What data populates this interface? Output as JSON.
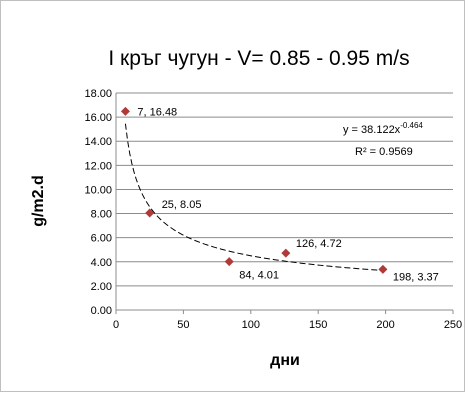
{
  "chart_data": {
    "type": "scatter",
    "title": "І кръг чугун - V= 0.85 - 0.95 m/s",
    "xlabel": "дни",
    "ylabel": "g/m2.d",
    "xlim": [
      0,
      250
    ],
    "ylim": [
      0,
      18
    ],
    "x_ticks": [
      "0",
      "50",
      "100",
      "150",
      "200",
      "250"
    ],
    "y_ticks": [
      "0.00",
      "2.00",
      "4.00",
      "6.00",
      "8.00",
      "10.00",
      "12.00",
      "14.00",
      "16.00",
      "18.00"
    ],
    "grid": "horizontal",
    "legend": "none",
    "series": [
      {
        "marker": "diamond",
        "color": "#b03a3a",
        "points": [
          {
            "x": 7,
            "y": 16.48,
            "label": "7, 16.48"
          },
          {
            "x": 25,
            "y": 8.05,
            "label": "25, 8.05"
          },
          {
            "x": 84,
            "y": 4.01,
            "label": "84, 4.01"
          },
          {
            "x": 126,
            "y": 4.72,
            "label": "126, 4.72"
          },
          {
            "x": 198,
            "y": 3.37,
            "label": "198, 3.37"
          }
        ]
      }
    ],
    "trendline": {
      "type": "power",
      "a": 38.122,
      "b": -0.464,
      "color": "#000000",
      "equation": "y = 38.122x",
      "equation_exponent": "-0.464",
      "r_squared": "R² = 0.9569"
    }
  }
}
